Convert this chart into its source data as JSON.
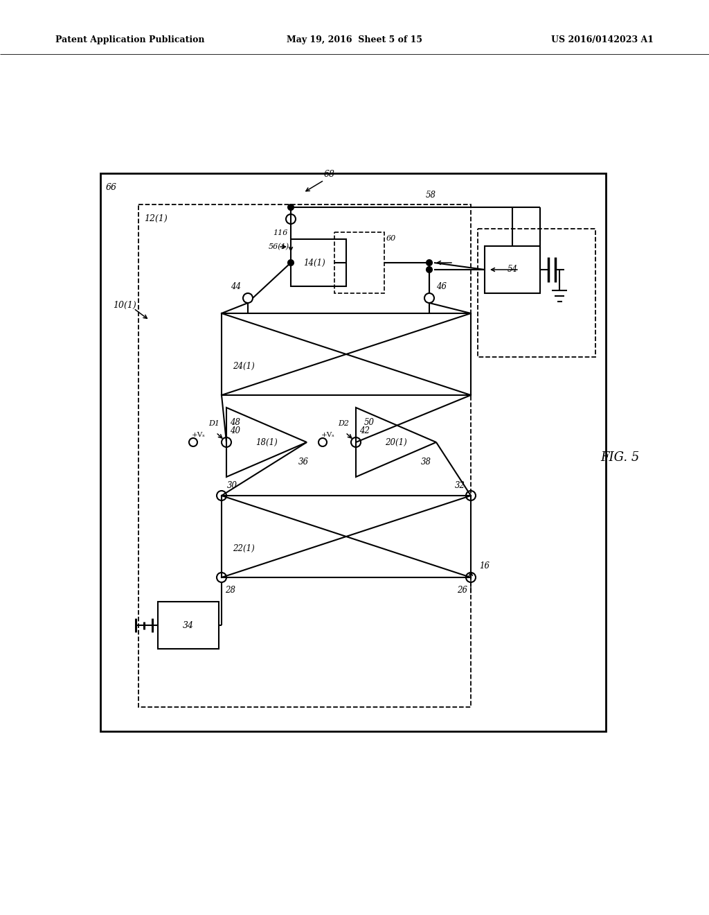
{
  "bg": "#ffffff",
  "lc": "#000000",
  "header_left": "Patent Application Publication",
  "header_mid": "May 19, 2016  Sheet 5 of 15",
  "header_right": "US 2016/0142023 A1",
  "fig_label": "FIG. 5"
}
